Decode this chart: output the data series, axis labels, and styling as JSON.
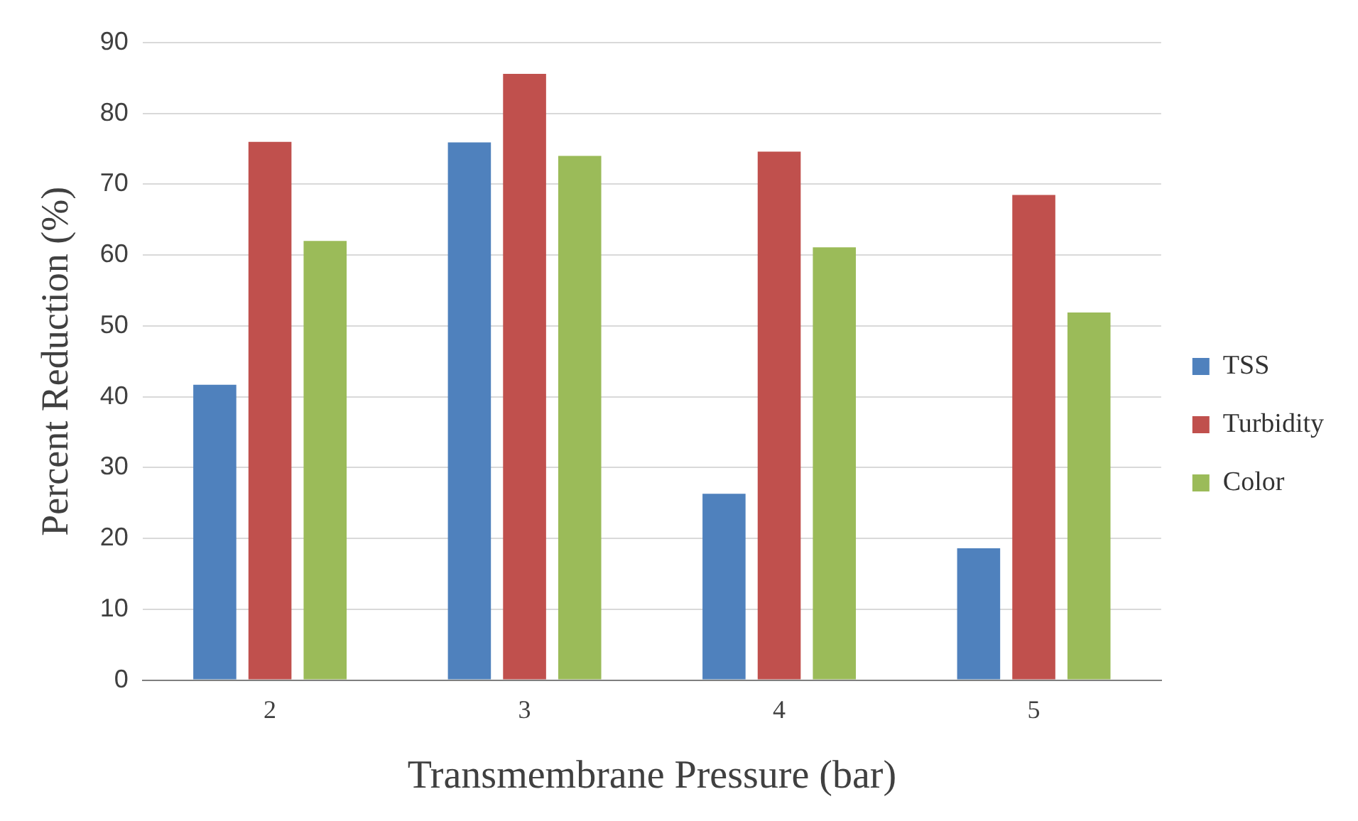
{
  "chart_data": {
    "type": "bar",
    "xlabel": "Transmembrane Pressure (bar)",
    "ylabel": "Percent Reduction (%)",
    "categories": [
      "2",
      "3",
      "4",
      "5"
    ],
    "series": [
      {
        "name": "TSS",
        "color": "#4f81bd",
        "values": [
          41.7,
          75.9,
          26.3,
          18.6
        ]
      },
      {
        "name": "Turbidity",
        "color": "#c0504d",
        "values": [
          76,
          85.6,
          74.6,
          68.5
        ]
      },
      {
        "name": "Color",
        "color": "#9bbb59",
        "values": [
          62,
          74,
          61.1,
          51.9
        ]
      }
    ],
    "ylim": [
      0,
      90
    ],
    "yticks": [
      0,
      10,
      20,
      30,
      40,
      50,
      60,
      70,
      80,
      90
    ],
    "grid": "y",
    "legend": "right"
  }
}
